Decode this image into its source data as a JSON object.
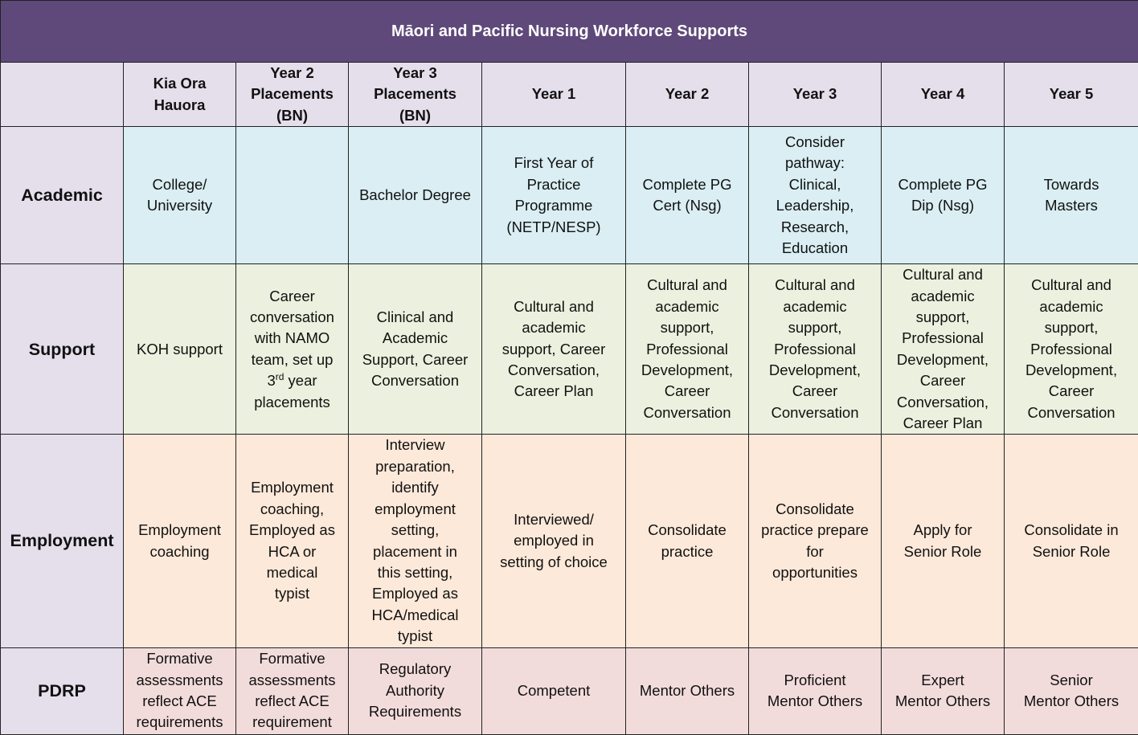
{
  "title": "Māori and Pacific Nursing Workforce Supports",
  "columns": [
    [
      "Kia Ora",
      "Hauora"
    ],
    [
      "Year 2",
      "Placements",
      "(BN)"
    ],
    [
      "Year 3",
      "Placements",
      "(BN)"
    ],
    [
      "Year 1"
    ],
    [
      "Year 2"
    ],
    [
      "Year 3"
    ],
    [
      "Year 4"
    ],
    [
      "Year 5"
    ]
  ],
  "rows": [
    {
      "label": "Academic",
      "cells": [
        [
          "College/",
          "University"
        ],
        [],
        [
          "Bachelor Degree"
        ],
        [
          "First Year of",
          "Practice",
          "Programme",
          "(NETP/NESP)"
        ],
        [
          "Complete PG",
          "Cert (Nsg)"
        ],
        [
          "Consider",
          "pathway:",
          "Clinical,",
          "Leadership,",
          "Research,",
          "Education"
        ],
        [
          "Complete PG",
          "Dip (Nsg)"
        ],
        [
          "Towards",
          "Masters"
        ]
      ]
    },
    {
      "label": "Support",
      "cells": [
        [
          "KOH support"
        ],
        [
          "Career",
          "conversation",
          "with NAMO",
          "team, set up",
          "3rd year",
          "placements"
        ],
        [
          "Clinical and",
          "Academic",
          "Support, Career",
          "Conversation"
        ],
        [
          "Cultural and",
          "academic",
          "support, Career",
          "Conversation,",
          "Career Plan"
        ],
        [
          "Cultural and",
          "academic",
          "support,",
          "Professional",
          "Development,",
          "Career",
          "Conversation"
        ],
        [
          "Cultural and",
          "academic",
          "support,",
          "Professional",
          "Development,",
          "Career",
          "Conversation"
        ],
        [
          "Cultural and",
          "academic",
          "support,",
          "Professional",
          "Development,",
          "Career",
          "Conversation,",
          "Career Plan"
        ],
        [
          "Cultural and",
          "academic",
          "support,",
          "Professional",
          "Development,",
          "Career",
          "Conversation"
        ]
      ]
    },
    {
      "label": "Employment",
      "cells": [
        [
          "Employment",
          "coaching"
        ],
        [
          "Employment",
          "coaching,",
          "Employed as",
          "HCA or",
          "medical",
          "typist"
        ],
        [
          "Interview",
          "preparation,",
          "identify",
          "employment",
          "setting,",
          "placement in",
          "this setting,",
          "Employed as",
          "HCA/medical",
          "typist"
        ],
        [
          "Interviewed/",
          "employed in",
          "setting of choice"
        ],
        [
          "Consolidate",
          "practice"
        ],
        [
          "Consolidate",
          "practice prepare",
          "for",
          "opportunities"
        ],
        [
          "Apply for",
          "Senior Role"
        ],
        [
          "Consolidate in",
          "Senior Role"
        ]
      ]
    },
    {
      "label": "PDRP",
      "cells": [
        [
          "Formative",
          "assessments",
          "reflect ACE",
          "requirements"
        ],
        [
          "Formative",
          "assessments",
          "reflect ACE",
          "requirement"
        ],
        [
          "Regulatory",
          "Authority",
          "Requirements"
        ],
        [
          "Competent"
        ],
        [
          "Mentor Others"
        ],
        [
          "Proficient",
          "Mentor Others"
        ],
        [
          "Expert",
          "Mentor Others"
        ],
        [
          "Senior",
          "Mentor Others"
        ]
      ]
    }
  ]
}
